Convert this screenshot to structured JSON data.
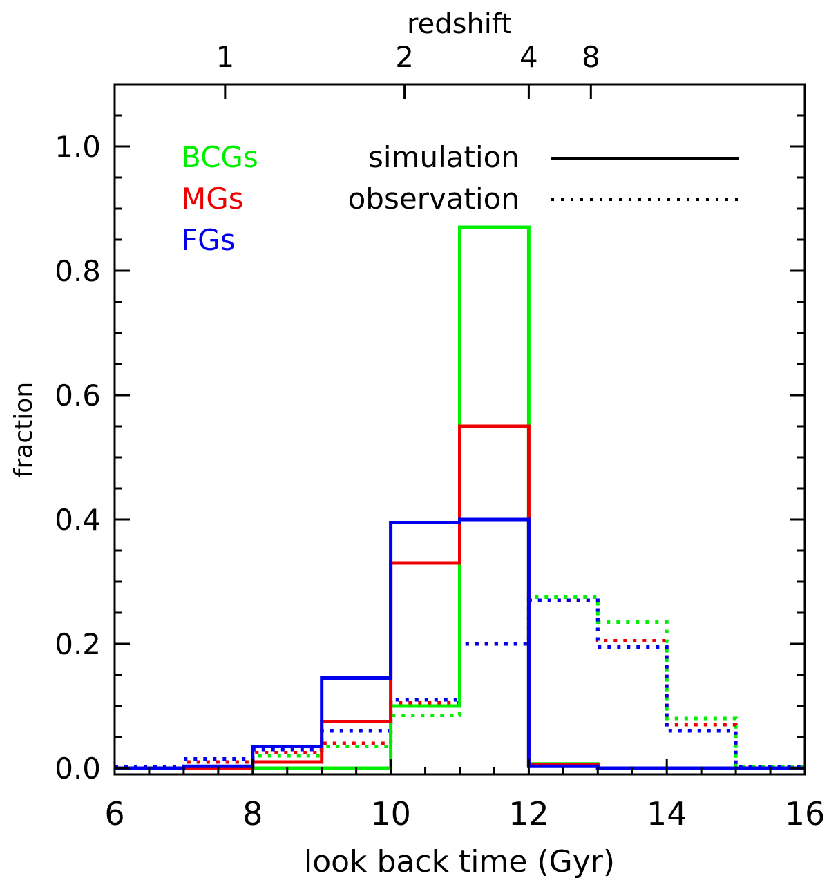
{
  "chart_data": {
    "type": "step-histogram",
    "xlabel": "look back time (Gyr)",
    "ylabel": "fraction",
    "top_axis_label": "redshift",
    "xlim": [
      6,
      16
    ],
    "ylim": [
      -0.01,
      1.1
    ],
    "x_ticks": [
      "6",
      "8",
      "10",
      "12",
      "14",
      "16"
    ],
    "y_ticks": [
      "0.0",
      "0.2",
      "0.4",
      "0.6",
      "0.8",
      "1.0"
    ],
    "top_ticks": [
      {
        "label": "1",
        "x": 7.6
      },
      {
        "label": "2",
        "x": 10.2
      },
      {
        "label": "4",
        "x": 12.0
      },
      {
        "label": "8",
        "x": 12.9
      }
    ],
    "bin_edges": [
      6,
      7,
      8,
      9,
      10,
      11,
      12,
      13,
      14,
      15,
      16
    ],
    "legend": {
      "groups": [
        {
          "name": "BCGs",
          "color": "#00ee00"
        },
        {
          "name": "MGs",
          "color": "#ee0000"
        },
        {
          "name": "FGs",
          "color": "#0000ee"
        }
      ],
      "styles": [
        {
          "name": "simulation",
          "dash": "solid"
        },
        {
          "name": "observation",
          "dash": "dotted"
        }
      ]
    },
    "series": [
      {
        "name": "BCGs observation",
        "style": "dotted",
        "color": "#00ee00",
        "values": [
          0.002,
          0.01,
          0.02,
          0.035,
          0.085,
          0.2,
          0.275,
          0.235,
          0.08,
          0.002
        ]
      },
      {
        "name": "MGs observation",
        "style": "dotted",
        "color": "#ee0000",
        "values": [
          0.002,
          0.01,
          0.025,
          0.04,
          0.105,
          0.2,
          0.27,
          0.205,
          0.07,
          0.002
        ]
      },
      {
        "name": "FGs observation",
        "style": "dotted",
        "color": "#0000ee",
        "values": [
          0.002,
          0.015,
          0.03,
          0.06,
          0.11,
          0.2,
          0.27,
          0.195,
          0.06,
          0.002
        ]
      },
      {
        "name": "BCGs simulation",
        "style": "solid",
        "color": "#00ee00",
        "values": [
          0.0,
          0.0,
          0.0,
          0.0,
          0.1,
          0.87,
          0.007,
          0.0,
          0.0,
          0.0
        ]
      },
      {
        "name": "MGs simulation",
        "style": "solid",
        "color": "#ee0000",
        "values": [
          0.0,
          0.0,
          0.01,
          0.075,
          0.33,
          0.55,
          0.005,
          0.0,
          0.0,
          0.0
        ]
      },
      {
        "name": "FGs simulation",
        "style": "solid",
        "color": "#0000ee",
        "values": [
          0.0,
          0.003,
          0.035,
          0.145,
          0.395,
          0.4,
          0.003,
          0.0,
          0.0,
          0.0
        ]
      }
    ]
  }
}
